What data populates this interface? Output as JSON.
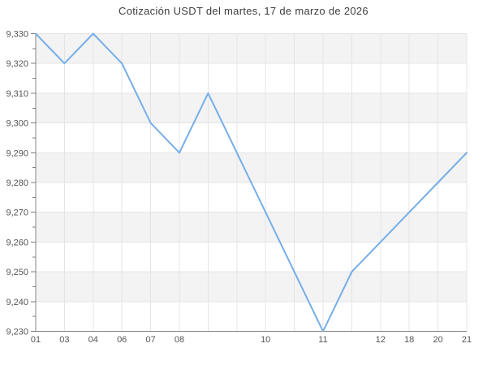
{
  "chart_data": {
    "type": "line",
    "title": "Cotización USDT del martes, 17 de marzo de 2026",
    "xlabel": "",
    "ylabel": "",
    "categories": [
      "01",
      "03",
      "04",
      "06",
      "07",
      "08",
      "",
      "",
      "10",
      "",
      "11",
      "",
      "12",
      "18",
      "20",
      "21"
    ],
    "series": [
      {
        "name": "USDT",
        "values": [
          9330,
          9320,
          9330,
          9320,
          9300,
          9290,
          9310,
          9290,
          9270,
          9250,
          9230,
          9250,
          9260,
          9270,
          9280,
          9290
        ]
      }
    ],
    "ylim": [
      9230,
      9330
    ],
    "y_major_tick_interval": 10,
    "y_minor_tick_interval": 5,
    "y_tick_labels": [
      "9,230",
      "9,240",
      "9,250",
      "9,260",
      "9,270",
      "9,280",
      "9,290",
      "9,300",
      "9,310",
      "9,320",
      "9,330"
    ],
    "grid": true,
    "alternate_band_fill": true,
    "legend_position": "none",
    "colors": {
      "line": "#76aee9",
      "band": "#f3f3f3",
      "grid": "#e4e4e4",
      "axis": "#868686",
      "tick": "#7d7d7d",
      "label": "#555555",
      "title": "#3d3d3d"
    }
  }
}
